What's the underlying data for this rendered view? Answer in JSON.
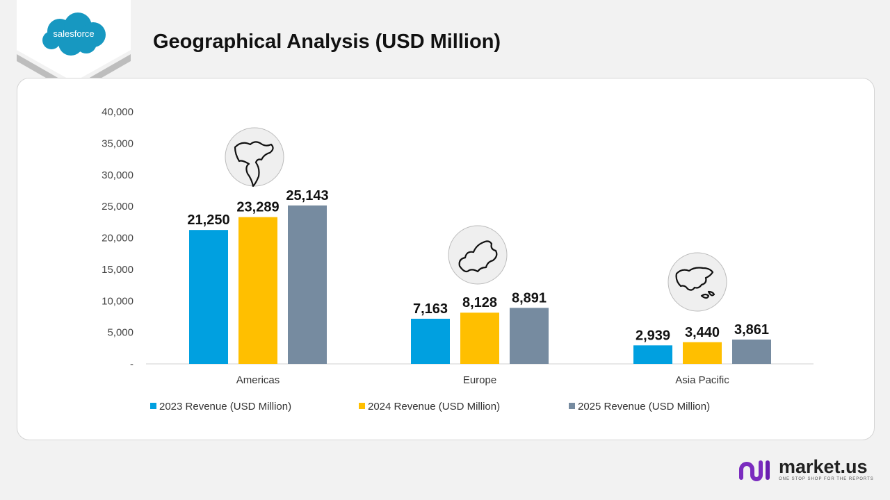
{
  "brand": {
    "name": "salesforce",
    "color": "#1798c1"
  },
  "footer": {
    "name": "market.us",
    "tagline": "ONE STOP SHOP FOR THE REPORTS"
  },
  "chart_data": {
    "type": "bar",
    "title": "Geographical Analysis (USD Million)",
    "categories": [
      "Americas",
      "Europe",
      "Asia Pacific"
    ],
    "category_icons": [
      "americas-map-icon",
      "europe-map-icon",
      "asia-pacific-map-icon"
    ],
    "series": [
      {
        "name": "2023 Revenue (USD Million)",
        "color": "#00a0e0",
        "values": [
          21250,
          7163,
          2939
        ]
      },
      {
        "name": "2024 Revenue (USD Million)",
        "color": "#ffbf00",
        "values": [
          23289,
          8128,
          3440
        ]
      },
      {
        "name": "2025 Revenue (USD Million)",
        "color": "#768ba0",
        "values": [
          25143,
          8891,
          3861
        ]
      }
    ],
    "yticks": [
      "-",
      "5,000",
      "10,000",
      "15,000",
      "20,000",
      "25,000",
      "30,000",
      "35,000",
      "40,000"
    ],
    "ylim": [
      0,
      40000
    ],
    "grid": false,
    "legend": "bottom"
  }
}
